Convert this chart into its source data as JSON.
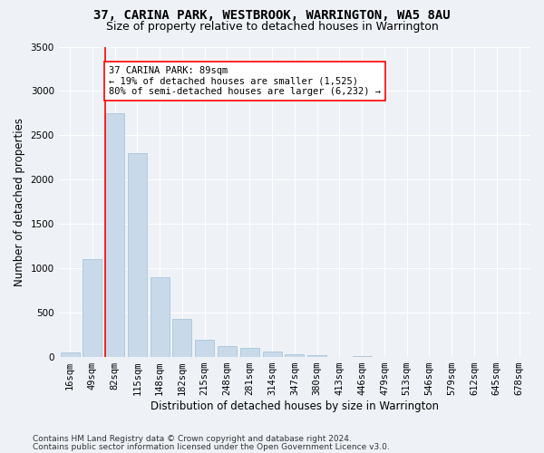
{
  "title": "37, CARINA PARK, WESTBROOK, WARRINGTON, WA5 8AU",
  "subtitle": "Size of property relative to detached houses in Warrington",
  "xlabel": "Distribution of detached houses by size in Warrington",
  "ylabel": "Number of detached properties",
  "footer_line1": "Contains HM Land Registry data © Crown copyright and database right 2024.",
  "footer_line2": "Contains public sector information licensed under the Open Government Licence v3.0.",
  "categories": [
    "16sqm",
    "49sqm",
    "82sqm",
    "115sqm",
    "148sqm",
    "182sqm",
    "215sqm",
    "248sqm",
    "281sqm",
    "314sqm",
    "347sqm",
    "380sqm",
    "413sqm",
    "446sqm",
    "479sqm",
    "513sqm",
    "546sqm",
    "579sqm",
    "612sqm",
    "645sqm",
    "678sqm"
  ],
  "values": [
    50,
    1100,
    2750,
    2300,
    900,
    430,
    200,
    120,
    100,
    60,
    35,
    20,
    5,
    15,
    5,
    2,
    2,
    1,
    1,
    0,
    0
  ],
  "bar_color": "#c8d9ea",
  "bar_edge_color": "#a0bdd4",
  "property_line_bar_index": 2,
  "property_line_color": "red",
  "annotation_text": "37 CARINA PARK: 89sqm\n← 19% of detached houses are smaller (1,525)\n80% of semi-detached houses are larger (6,232) →",
  "annotation_box_color": "white",
  "annotation_box_edge_color": "red",
  "ylim": [
    0,
    3500
  ],
  "yticks": [
    0,
    500,
    1000,
    1500,
    2000,
    2500,
    3000,
    3500
  ],
  "bg_color": "#eef2f7",
  "plot_bg_color": "#eef2f7",
  "title_fontsize": 10,
  "subtitle_fontsize": 9,
  "axis_label_fontsize": 8.5,
  "tick_fontsize": 7.5,
  "annotation_fontsize": 7.5,
  "footer_fontsize": 6.5
}
